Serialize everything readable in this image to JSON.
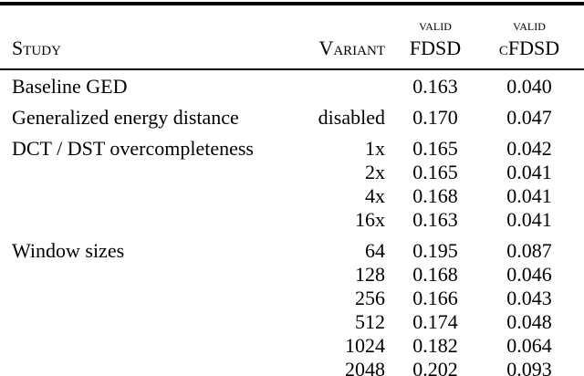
{
  "table": {
    "headers": {
      "study": "Study",
      "variant": "Variant",
      "valid_label": "valid",
      "fdsd": "FDSD",
      "cfdsd": "cFDSD"
    },
    "rows": [
      {
        "study": "Baseline GED",
        "variant": "",
        "fdsd": "0.163",
        "cfdsd": "0.040"
      },
      {
        "study": "Generalized energy distance",
        "variant": "disabled",
        "fdsd": "0.170",
        "cfdsd": "0.047"
      },
      {
        "study": "DCT / DST overcompleteness",
        "variant": "1x",
        "fdsd": "0.165",
        "cfdsd": "0.042"
      },
      {
        "study": "",
        "variant": "2x",
        "fdsd": "0.165",
        "cfdsd": "0.041"
      },
      {
        "study": "",
        "variant": "4x",
        "fdsd": "0.168",
        "cfdsd": "0.041"
      },
      {
        "study": "",
        "variant": "16x",
        "fdsd": "0.163",
        "cfdsd": "0.041"
      },
      {
        "study": "Window sizes",
        "variant": "64",
        "fdsd": "0.195",
        "cfdsd": "0.087"
      },
      {
        "study": "",
        "variant": "128",
        "fdsd": "0.168",
        "cfdsd": "0.046"
      },
      {
        "study": "",
        "variant": "256",
        "fdsd": "0.166",
        "cfdsd": "0.043"
      },
      {
        "study": "",
        "variant": "512",
        "fdsd": "0.174",
        "cfdsd": "0.048"
      },
      {
        "study": "",
        "variant": "1024",
        "fdsd": "0.182",
        "cfdsd": "0.064"
      },
      {
        "study": "",
        "variant": "2048",
        "fdsd": "0.202",
        "cfdsd": "0.093"
      }
    ],
    "colors": {
      "text": "#000000",
      "background": "#ffffff",
      "rule": "#000000"
    }
  }
}
